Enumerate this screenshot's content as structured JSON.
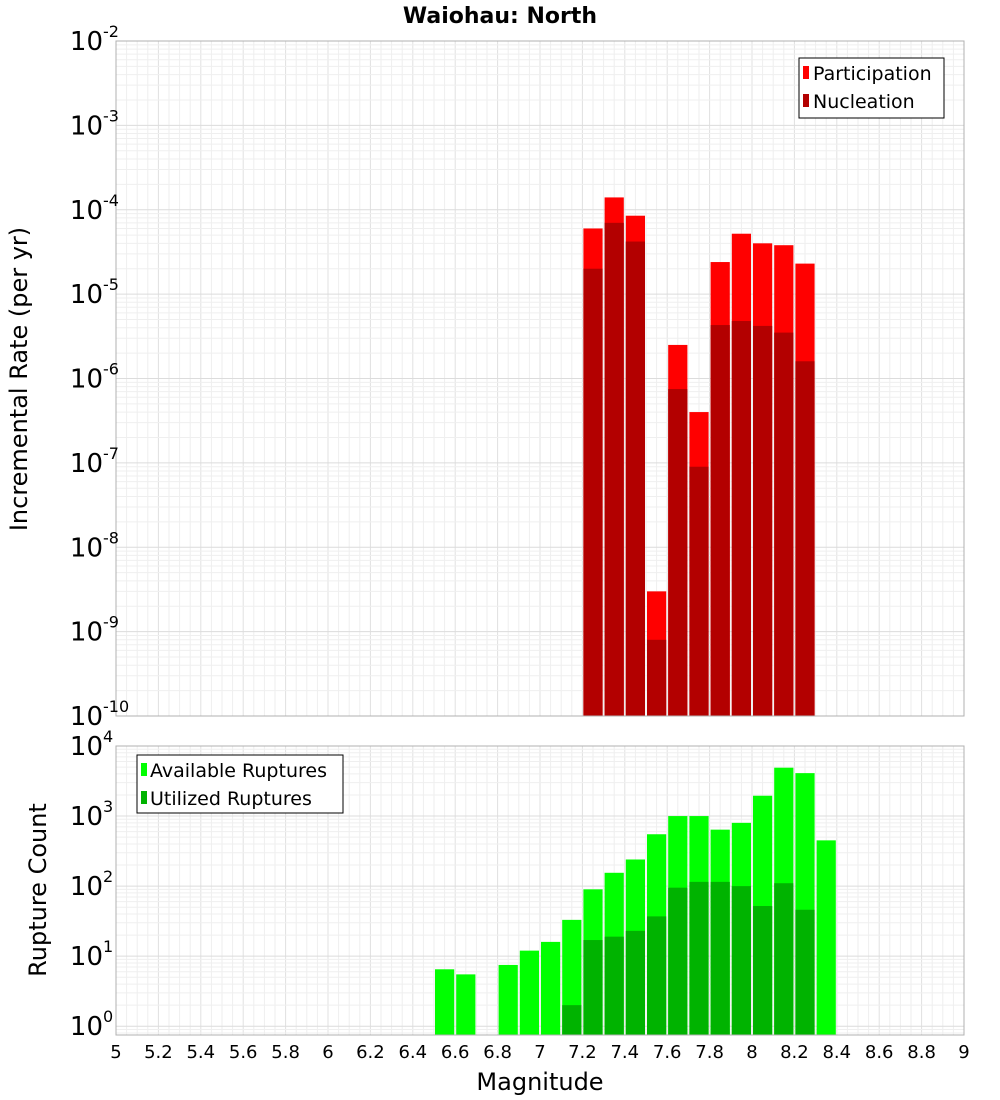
{
  "chart_data": {
    "title": "Waiohau: North",
    "x": {
      "label": "Magnitude",
      "range": [
        5,
        9
      ],
      "tick_labels": [
        "5",
        "5.2",
        "5.4",
        "5.6",
        "5.8",
        "6",
        "6.2",
        "6.4",
        "6.6",
        "6.8",
        "7",
        "7.2",
        "7.4",
        "7.6",
        "7.8",
        "8",
        "8.2",
        "8.4",
        "8.6",
        "8.8",
        "9"
      ],
      "bin_width": 0.1
    },
    "panels": [
      {
        "id": "rate",
        "type": "bar",
        "ylabel": "Incremental Rate (per yr)",
        "yscale": "log",
        "ylim": [
          1e-10,
          0.01
        ],
        "y_tick_exponents": [
          -10,
          -9,
          -8,
          -7,
          -6,
          -5,
          -4,
          -3,
          -2
        ],
        "legend": {
          "position": "top-right",
          "entries": [
            "Participation",
            "Nucleation"
          ]
        },
        "grid": true,
        "series": [
          {
            "name": "Participation",
            "color": "#ff0000",
            "points": [
              {
                "x": 7.25,
                "y": 6e-05
              },
              {
                "x": 7.35,
                "y": 0.00014
              },
              {
                "x": 7.45,
                "y": 8.5e-05
              },
              {
                "x": 7.55,
                "y": 3e-09
              },
              {
                "x": 7.65,
                "y": 2.5e-06
              },
              {
                "x": 7.75,
                "y": 4e-07
              },
              {
                "x": 7.85,
                "y": 2.4e-05
              },
              {
                "x": 7.95,
                "y": 5.2e-05
              },
              {
                "x": 8.05,
                "y": 4e-05
              },
              {
                "x": 8.15,
                "y": 3.8e-05
              },
              {
                "x": 8.25,
                "y": 2.3e-05
              }
            ]
          },
          {
            "name": "Nucleation",
            "color": "#b30000",
            "points": [
              {
                "x": 7.25,
                "y": 2e-05
              },
              {
                "x": 7.35,
                "y": 7e-05
              },
              {
                "x": 7.45,
                "y": 4.2e-05
              },
              {
                "x": 7.55,
                "y": 8e-10
              },
              {
                "x": 7.65,
                "y": 7.5e-07
              },
              {
                "x": 7.75,
                "y": 9e-08
              },
              {
                "x": 7.85,
                "y": 4.3e-06
              },
              {
                "x": 7.95,
                "y": 4.8e-06
              },
              {
                "x": 8.05,
                "y": 4.2e-06
              },
              {
                "x": 8.15,
                "y": 3.5e-06
              },
              {
                "x": 8.25,
                "y": 1.6e-06
              }
            ]
          }
        ]
      },
      {
        "id": "count",
        "type": "bar",
        "ylabel": "Rupture Count",
        "yscale": "log",
        "ylim": [
          0.75,
          10000
        ],
        "y_tick_exponents": [
          0,
          1,
          2,
          3,
          4
        ],
        "legend": {
          "position": "top-left",
          "entries": [
            "Available Ruptures",
            "Utilized Ruptures"
          ]
        },
        "grid": true,
        "series": [
          {
            "name": "Available Ruptures",
            "color": "#00ff00",
            "points": [
              {
                "x": 6.55,
                "y": 6.5
              },
              {
                "x": 6.65,
                "y": 5.5
              },
              {
                "x": 6.85,
                "y": 7.5
              },
              {
                "x": 6.95,
                "y": 12
              },
              {
                "x": 7.05,
                "y": 16
              },
              {
                "x": 7.15,
                "y": 33
              },
              {
                "x": 7.25,
                "y": 90
              },
              {
                "x": 7.35,
                "y": 155
              },
              {
                "x": 7.45,
                "y": 240
              },
              {
                "x": 7.55,
                "y": 550
              },
              {
                "x": 7.65,
                "y": 1000
              },
              {
                "x": 7.75,
                "y": 1000
              },
              {
                "x": 7.85,
                "y": 640
              },
              {
                "x": 7.95,
                "y": 800
              },
              {
                "x": 8.05,
                "y": 1950
              },
              {
                "x": 8.15,
                "y": 4900
              },
              {
                "x": 8.25,
                "y": 4100
              },
              {
                "x": 8.35,
                "y": 450
              }
            ]
          },
          {
            "name": "Utilized Ruptures",
            "color": "#00b300",
            "points": [
              {
                "x": 7.15,
                "y": 2
              },
              {
                "x": 7.25,
                "y": 17
              },
              {
                "x": 7.35,
                "y": 19
              },
              {
                "x": 7.45,
                "y": 23
              },
              {
                "x": 7.55,
                "y": 37
              },
              {
                "x": 7.65,
                "y": 95
              },
              {
                "x": 7.75,
                "y": 115
              },
              {
                "x": 7.85,
                "y": 115
              },
              {
                "x": 7.95,
                "y": 100
              },
              {
                "x": 8.05,
                "y": 52
              },
              {
                "x": 8.15,
                "y": 110
              },
              {
                "x": 8.25,
                "y": 46
              }
            ]
          }
        ]
      }
    ]
  }
}
